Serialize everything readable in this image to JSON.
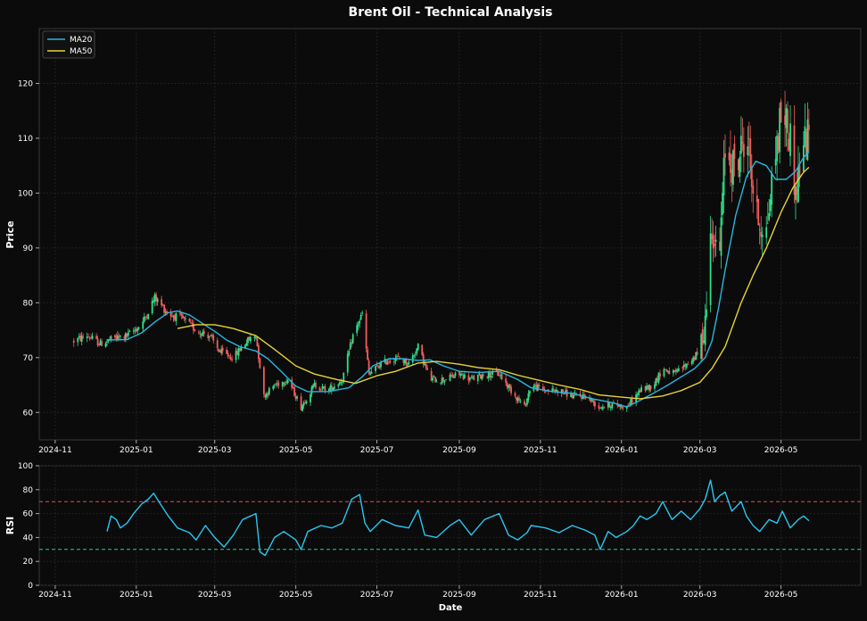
{
  "chart_data": [
    {
      "type": "candlestick",
      "title": "Brent Oil - Technical Analysis",
      "ylabel": "Price",
      "xlabel": "",
      "x_ticks": [
        "2024-11",
        "2025-01",
        "2025-03",
        "2025-05",
        "2025-07",
        "2025-09",
        "2025-11",
        "2026-01",
        "2026-03",
        "2026-05"
      ],
      "y_ticks": [
        60,
        70,
        80,
        90,
        100,
        110,
        120
      ],
      "xlim": [
        "2024-10-20",
        "2026-06-30"
      ],
      "ylim": [
        55,
        130
      ],
      "grid": true,
      "legend_position": "top-left",
      "up_color": "#2ee08a",
      "down_color": "#f25c5c",
      "price_path": [
        [
          "2024-11-15",
          73
        ],
        [
          "2024-11-25",
          74
        ],
        [
          "2024-12-05",
          72.5
        ],
        [
          "2024-12-15",
          73.5
        ],
        [
          "2024-12-25",
          74
        ],
        [
          "2025-01-05",
          76
        ],
        [
          "2025-01-15",
          81
        ],
        [
          "2025-01-25",
          78
        ],
        [
          "2025-02-05",
          77
        ],
        [
          "2025-02-15",
          75
        ],
        [
          "2025-02-25",
          74
        ],
        [
          "2025-03-05",
          71
        ],
        [
          "2025-03-15",
          70
        ],
        [
          "2025-03-25",
          73
        ],
        [
          "2025-04-01",
          74
        ],
        [
          "2025-04-07",
          63
        ],
        [
          "2025-04-15",
          65
        ],
        [
          "2025-04-25",
          66
        ],
        [
          "2025-05-05",
          61
        ],
        [
          "2025-05-15",
          65
        ],
        [
          "2025-05-25",
          64
        ],
        [
          "2025-06-05",
          66
        ],
        [
          "2025-06-13",
          74
        ],
        [
          "2025-06-20",
          78
        ],
        [
          "2025-06-25",
          67
        ],
        [
          "2025-07-05",
          69
        ],
        [
          "2025-07-15",
          70
        ],
        [
          "2025-07-25",
          69
        ],
        [
          "2025-08-01",
          72
        ],
        [
          "2025-08-10",
          66
        ],
        [
          "2025-08-20",
          66
        ],
        [
          "2025-09-01",
          67
        ],
        [
          "2025-09-10",
          66
        ],
        [
          "2025-09-20",
          67
        ],
        [
          "2025-10-01",
          67
        ],
        [
          "2025-10-10",
          64
        ],
        [
          "2025-10-20",
          61
        ],
        [
          "2025-10-25",
          65
        ],
        [
          "2025-11-05",
          64
        ],
        [
          "2025-11-15",
          64
        ],
        [
          "2025-11-25",
          63
        ],
        [
          "2025-12-05",
          63
        ],
        [
          "2025-12-15",
          61
        ],
        [
          "2025-12-25",
          61.5
        ],
        [
          "2026-01-05",
          61
        ],
        [
          "2026-01-15",
          64
        ],
        [
          "2026-01-25",
          65
        ],
        [
          "2026-02-01",
          68
        ],
        [
          "2026-02-10",
          67
        ],
        [
          "2026-02-20",
          69
        ],
        [
          "2026-03-01",
          71
        ],
        [
          "2026-03-05",
          77
        ],
        [
          "2026-03-10",
          95
        ],
        [
          "2026-03-15",
          85
        ],
        [
          "2026-03-20",
          108
        ],
        [
          "2026-03-28",
          104
        ],
        [
          "2026-04-05",
          112
        ],
        [
          "2026-04-12",
          96
        ],
        [
          "2026-04-20",
          93
        ],
        [
          "2026-04-25",
          104
        ],
        [
          "2026-05-02",
          116
        ],
        [
          "2026-05-08",
          110
        ],
        [
          "2026-05-12",
          100
        ],
        [
          "2026-05-18",
          109
        ],
        [
          "2026-05-22",
          110
        ]
      ],
      "series": [
        {
          "name": "MA20",
          "color": "#29b6e0",
          "points": [
            [
              "2024-12-10",
              73.2
            ],
            [
              "2024-12-25",
              73.3
            ],
            [
              "2025-01-05",
              74.5
            ],
            [
              "2025-01-15",
              76.5
            ],
            [
              "2025-01-25",
              78.2
            ],
            [
              "2025-02-01",
              78.5
            ],
            [
              "2025-02-10",
              77.8
            ],
            [
              "2025-02-20",
              76.2
            ],
            [
              "2025-03-01",
              74.8
            ],
            [
              "2025-03-10",
              73.2
            ],
            [
              "2025-03-20",
              72.0
            ],
            [
              "2025-04-01",
              71.2
            ],
            [
              "2025-04-10",
              69.8
            ],
            [
              "2025-04-20",
              67.5
            ],
            [
              "2025-05-01",
              64.8
            ],
            [
              "2025-05-10",
              63.8
            ],
            [
              "2025-05-25",
              63.8
            ],
            [
              "2025-06-10",
              64.5
            ],
            [
              "2025-06-20",
              66.5
            ],
            [
              "2025-06-28",
              68.5
            ],
            [
              "2025-07-10",
              69.8
            ],
            [
              "2025-07-20",
              69.8
            ],
            [
              "2025-08-01",
              69.5
            ],
            [
              "2025-08-10",
              69.6
            ],
            [
              "2025-08-20",
              68.5
            ],
            [
              "2025-09-01",
              67.5
            ],
            [
              "2025-09-15",
              67.3
            ],
            [
              "2025-10-01",
              67.5
            ],
            [
              "2025-10-15",
              66.0
            ],
            [
              "2025-10-25",
              64.5
            ],
            [
              "2025-11-10",
              63.8
            ],
            [
              "2025-11-25",
              63.5
            ],
            [
              "2025-12-10",
              62.5
            ],
            [
              "2025-12-25",
              61.8
            ],
            [
              "2026-01-05",
              61.0
            ],
            [
              "2026-01-15",
              62.2
            ],
            [
              "2026-01-25",
              63.5
            ],
            [
              "2026-02-05",
              65.0
            ],
            [
              "2026-02-15",
              66.5
            ],
            [
              "2026-02-25",
              68.0
            ],
            [
              "2026-03-05",
              70.0
            ],
            [
              "2026-03-10",
              73.0
            ],
            [
              "2026-03-15",
              79.0
            ],
            [
              "2026-03-20",
              86.0
            ],
            [
              "2026-03-28",
              96.0
            ],
            [
              "2026-04-05",
              103.0
            ],
            [
              "2026-04-12",
              105.8
            ],
            [
              "2026-04-20",
              105.0
            ],
            [
              "2026-04-27",
              102.5
            ],
            [
              "2026-05-05",
              102.5
            ],
            [
              "2026-05-12",
              104.0
            ],
            [
              "2026-05-18",
              106.5
            ],
            [
              "2026-05-22",
              107.5
            ]
          ]
        },
        {
          "name": "MA50",
          "color": "#e8d335",
          "points": [
            [
              "2025-02-01",
              75.3
            ],
            [
              "2025-02-15",
              76.0
            ],
            [
              "2025-03-01",
              76.0
            ],
            [
              "2025-03-15",
              75.3
            ],
            [
              "2025-04-01",
              74.0
            ],
            [
              "2025-04-15",
              71.5
            ],
            [
              "2025-05-01",
              68.5
            ],
            [
              "2025-05-15",
              67.0
            ],
            [
              "2025-06-01",
              66.0
            ],
            [
              "2025-06-15",
              65.3
            ],
            [
              "2025-07-01",
              66.7
            ],
            [
              "2025-07-15",
              67.5
            ],
            [
              "2025-08-01",
              69.0
            ],
            [
              "2025-08-15",
              69.3
            ],
            [
              "2025-09-01",
              68.8
            ],
            [
              "2025-09-15",
              68.2
            ],
            [
              "2025-10-01",
              67.8
            ],
            [
              "2025-10-15",
              66.8
            ],
            [
              "2025-11-01",
              65.8
            ],
            [
              "2025-11-15",
              65.0
            ],
            [
              "2025-12-01",
              64.2
            ],
            [
              "2025-12-15",
              63.2
            ],
            [
              "2026-01-01",
              62.8
            ],
            [
              "2026-01-15",
              62.5
            ],
            [
              "2026-02-01",
              63.0
            ],
            [
              "2026-02-15",
              64.0
            ],
            [
              "2026-03-01",
              65.5
            ],
            [
              "2026-03-10",
              68.0
            ],
            [
              "2026-03-20",
              72.0
            ],
            [
              "2026-04-01",
              80.0
            ],
            [
              "2026-04-10",
              85.0
            ],
            [
              "2026-04-20",
              90.0
            ],
            [
              "2026-05-01",
              96.5
            ],
            [
              "2026-05-10",
              101.0
            ],
            [
              "2026-05-18",
              103.8
            ],
            [
              "2026-05-22",
              104.7
            ]
          ]
        }
      ]
    },
    {
      "type": "line",
      "title": "",
      "xlabel": "Date",
      "ylabel": "RSI",
      "x_ticks": [
        "2024-11",
        "2025-01",
        "2025-03",
        "2025-05",
        "2025-07",
        "2025-09",
        "2025-11",
        "2026-01",
        "2026-03",
        "2026-05"
      ],
      "y_ticks": [
        0,
        20,
        40,
        60,
        80,
        100
      ],
      "ylim": [
        0,
        100
      ],
      "grid": true,
      "overbought_level": 70,
      "oversold_level": 30,
      "overbought_color": "#e05050",
      "oversold_color": "#2ecc8a",
      "series": [
        {
          "name": "RSI",
          "color": "#29c6f0",
          "points": [
            [
              "2024-12-10",
              45
            ],
            [
              "2024-12-13",
              58
            ],
            [
              "2024-12-17",
              55
            ],
            [
              "2024-12-20",
              48
            ],
            [
              "2024-12-25",
              52
            ],
            [
              "2024-12-30",
              60
            ],
            [
              "2025-01-05",
              68
            ],
            [
              "2025-01-10",
              72
            ],
            [
              "2025-01-14",
              77
            ],
            [
              "2025-01-18",
              70
            ],
            [
              "2025-01-25",
              58
            ],
            [
              "2025-02-01",
              48
            ],
            [
              "2025-02-10",
              44
            ],
            [
              "2025-02-15",
              38
            ],
            [
              "2025-02-22",
              50
            ],
            [
              "2025-03-01",
              40
            ],
            [
              "2025-03-08",
              32
            ],
            [
              "2025-03-15",
              42
            ],
            [
              "2025-03-22",
              55
            ],
            [
              "2025-04-01",
              60
            ],
            [
              "2025-04-04",
              28
            ],
            [
              "2025-04-08",
              25
            ],
            [
              "2025-04-15",
              40
            ],
            [
              "2025-04-22",
              45
            ],
            [
              "2025-05-01",
              38
            ],
            [
              "2025-05-05",
              30
            ],
            [
              "2025-05-10",
              45
            ],
            [
              "2025-05-20",
              50
            ],
            [
              "2025-05-28",
              48
            ],
            [
              "2025-06-05",
              52
            ],
            [
              "2025-06-12",
              72
            ],
            [
              "2025-06-18",
              76
            ],
            [
              "2025-06-22",
              52
            ],
            [
              "2025-06-26",
              45
            ],
            [
              "2025-07-05",
              55
            ],
            [
              "2025-07-15",
              50
            ],
            [
              "2025-07-25",
              48
            ],
            [
              "2025-08-01",
              63
            ],
            [
              "2025-08-06",
              42
            ],
            [
              "2025-08-15",
              40
            ],
            [
              "2025-08-25",
              50
            ],
            [
              "2025-09-01",
              55
            ],
            [
              "2025-09-10",
              42
            ],
            [
              "2025-09-20",
              55
            ],
            [
              "2025-10-01",
              60
            ],
            [
              "2025-10-08",
              42
            ],
            [
              "2025-10-15",
              38
            ],
            [
              "2025-10-22",
              44
            ],
            [
              "2025-10-25",
              50
            ],
            [
              "2025-11-05",
              48
            ],
            [
              "2025-11-15",
              44
            ],
            [
              "2025-11-25",
              50
            ],
            [
              "2025-12-05",
              46
            ],
            [
              "2025-12-12",
              42
            ],
            [
              "2025-12-16",
              30
            ],
            [
              "2025-12-22",
              45
            ],
            [
              "2025-12-28",
              40
            ],
            [
              "2026-01-05",
              45
            ],
            [
              "2026-01-10",
              50
            ],
            [
              "2026-01-15",
              58
            ],
            [
              "2026-01-20",
              55
            ],
            [
              "2026-01-27",
              60
            ],
            [
              "2026-02-01",
              70
            ],
            [
              "2026-02-08",
              55
            ],
            [
              "2026-02-15",
              62
            ],
            [
              "2026-02-22",
              55
            ],
            [
              "2026-03-01",
              64
            ],
            [
              "2026-03-05",
              72
            ],
            [
              "2026-03-09",
              88
            ],
            [
              "2026-03-12",
              70
            ],
            [
              "2026-03-16",
              75
            ],
            [
              "2026-03-20",
              78
            ],
            [
              "2026-03-25",
              62
            ],
            [
              "2026-04-01",
              70
            ],
            [
              "2026-04-05",
              58
            ],
            [
              "2026-04-10",
              50
            ],
            [
              "2026-04-15",
              45
            ],
            [
              "2026-04-22",
              55
            ],
            [
              "2026-04-28",
              52
            ],
            [
              "2026-05-02",
              62
            ],
            [
              "2026-05-08",
              48
            ],
            [
              "2026-05-14",
              55
            ],
            [
              "2026-05-18",
              58
            ],
            [
              "2026-05-22",
              54
            ]
          ]
        }
      ]
    }
  ]
}
